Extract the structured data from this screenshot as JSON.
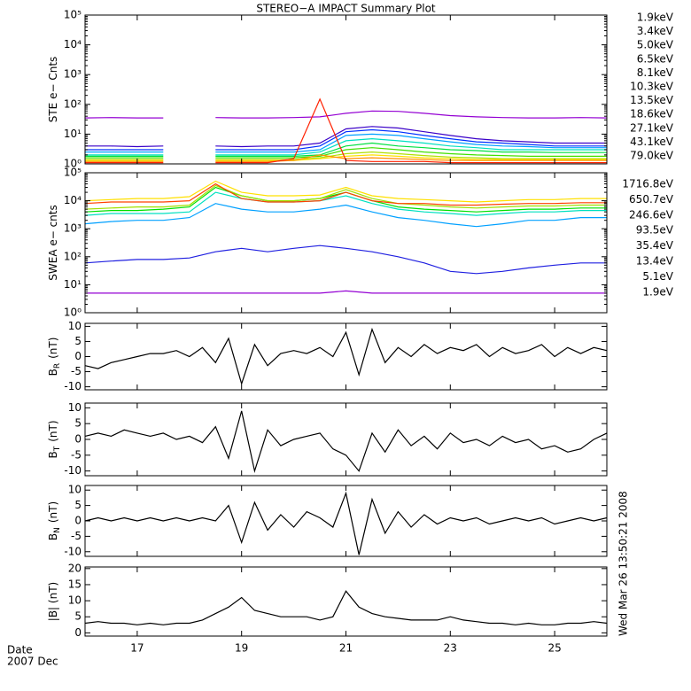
{
  "chart_data": [
    {
      "type": "line",
      "title": "STEREO−A IMPACT Summary Plot",
      "ylabel": "STE e− Cnts",
      "log": true,
      "xlim": [
        16,
        26
      ],
      "xticks": [
        17,
        19,
        21,
        23,
        25
      ],
      "ylim": [
        1,
        100000
      ],
      "yticks": [
        {
          "value": 1,
          "label": "10⁰"
        },
        {
          "value": 10,
          "label": "10¹"
        },
        {
          "value": 100,
          "label": "10²"
        },
        {
          "value": 1000,
          "label": "10³"
        },
        {
          "value": 10000,
          "label": "10⁴"
        },
        {
          "value": 100000,
          "label": "10⁵"
        }
      ],
      "x": [
        16,
        16.5,
        17,
        17.5,
        18,
        18.5,
        19,
        19.5,
        20,
        20.5,
        21,
        21.5,
        22,
        22.5,
        23,
        23.5,
        24,
        24.5,
        25,
        25.5,
        26
      ],
      "series": [
        {
          "name": "1.9keV",
          "color": "#9400d3",
          "values": [
            35,
            36,
            35,
            35,
            null,
            36,
            35,
            35,
            36,
            38,
            50,
            60,
            58,
            50,
            42,
            38,
            36,
            35,
            35,
            36,
            35
          ]
        },
        {
          "name": "3.4keV",
          "color": "#3a00c8",
          "values": [
            4,
            4,
            3.8,
            4,
            null,
            4,
            3.8,
            4,
            4,
            5,
            15,
            18,
            16,
            12,
            9,
            7,
            6,
            5.5,
            5,
            5,
            5
          ]
        },
        {
          "name": "5.0keV",
          "color": "#0030ff",
          "values": [
            3,
            3,
            3,
            3,
            null,
            3,
            3,
            3,
            3,
            4,
            12,
            14,
            12,
            9,
            7,
            5.5,
            5,
            4.5,
            4,
            4,
            4
          ]
        },
        {
          "name": "6.5keV",
          "color": "#00a0ff",
          "values": [
            2.5,
            2.5,
            2.5,
            2.5,
            null,
            2.5,
            2.5,
            2.5,
            2.5,
            3,
            9,
            10,
            9,
            7,
            5.5,
            4.5,
            4,
            3.8,
            3.5,
            3.5,
            3.5
          ]
        },
        {
          "name": "8.1keV",
          "color": "#00e0c0",
          "values": [
            2,
            2,
            2,
            2,
            null,
            2,
            2,
            2,
            2,
            2.5,
            6,
            7,
            6,
            5,
            4,
            3.5,
            3,
            3,
            3,
            3,
            3
          ]
        },
        {
          "name": "10.3keV",
          "color": "#00e040",
          "values": [
            1.8,
            1.8,
            1.8,
            1.8,
            null,
            1.8,
            1.8,
            1.8,
            1.8,
            2,
            4,
            5,
            4,
            3.5,
            3,
            2.8,
            2.5,
            2.5,
            2.4,
            2.4,
            2.4
          ]
        },
        {
          "name": "13.5keV",
          "color": "#40e000",
          "values": [
            1.6,
            1.6,
            1.6,
            1.6,
            null,
            1.6,
            1.6,
            1.6,
            1.6,
            1.8,
            3,
            3.5,
            3,
            2.5,
            2.2,
            2,
            1.9,
            1.8,
            1.8,
            1.8,
            1.8
          ]
        },
        {
          "name": "18.6keV",
          "color": "#b0e000",
          "values": [
            1.4,
            1.4,
            1.4,
            1.4,
            null,
            1.4,
            1.4,
            1.4,
            1.4,
            1.6,
            2.2,
            2.5,
            2.2,
            1.9,
            1.7,
            1.6,
            1.5,
            1.5,
            1.5,
            1.5,
            1.5
          ]
        },
        {
          "name": "27.1keV",
          "color": "#ffe000",
          "values": [
            1.3,
            1.3,
            1.3,
            1.3,
            null,
            1.3,
            1.3,
            1.3,
            1.3,
            1.5,
            1.8,
            2,
            1.8,
            1.6,
            1.5,
            1.4,
            1.4,
            1.4,
            1.4,
            1.4,
            1.4
          ]
        },
        {
          "name": "43.1keV",
          "color": "#ff9000",
          "values": [
            1.2,
            1.2,
            1.2,
            1.2,
            null,
            1.2,
            1.2,
            1.2,
            1.3,
            2,
            1.5,
            1.6,
            1.5,
            1.4,
            1.3,
            1.3,
            1.3,
            1.3,
            1.3,
            1.3,
            1.3
          ]
        },
        {
          "name": "79.0keV",
          "color": "#ff2000",
          "values": [
            1.1,
            1.1,
            1.1,
            1.1,
            null,
            1.1,
            1.1,
            1.1,
            1.5,
            150,
            1.3,
            1.2,
            1.2,
            1.2,
            1.1,
            1.1,
            1.1,
            1.1,
            1.1,
            1.1,
            1.1
          ]
        }
      ]
    },
    {
      "type": "line",
      "ylabel": "SWEA e− cnts",
      "log": true,
      "xlim": [
        16,
        26
      ],
      "xticks": [
        17,
        19,
        21,
        23,
        25
      ],
      "ylim": [
        1,
        100000
      ],
      "yticks": [
        {
          "value": 1,
          "label": "10⁰"
        },
        {
          "value": 10,
          "label": "10¹"
        },
        {
          "value": 100,
          "label": "10²"
        },
        {
          "value": 1000,
          "label": "10³"
        },
        {
          "value": 10000,
          "label": "10⁴"
        },
        {
          "value": 100000,
          "label": "10⁵"
        }
      ],
      "x": [
        16,
        16.5,
        17,
        17.5,
        18,
        18.5,
        19,
        19.5,
        20,
        20.5,
        21,
        21.5,
        22,
        22.5,
        23,
        23.5,
        24,
        24.5,
        25,
        25.5,
        26
      ],
      "series": [
        {
          "name": "1716.8eV",
          "color": "#9400d3",
          "values": [
            5,
            5,
            5,
            5,
            5,
            5,
            5,
            5,
            5,
            5,
            6,
            5,
            5,
            5,
            5,
            5,
            5,
            5,
            5,
            5,
            5
          ]
        },
        {
          "name": "650.7eV",
          "color": "#2020e0",
          "values": [
            60,
            70,
            80,
            80,
            90,
            150,
            200,
            150,
            200,
            250,
            200,
            150,
            100,
            60,
            30,
            25,
            30,
            40,
            50,
            60,
            60
          ]
        },
        {
          "name": "246.6eV",
          "color": "#00a0ff",
          "values": [
            1500,
            1800,
            2000,
            2000,
            2500,
            8000,
            5000,
            4000,
            4000,
            5000,
            7000,
            4000,
            2500,
            2000,
            1500,
            1200,
            1500,
            2000,
            2000,
            2500,
            2500
          ]
        },
        {
          "name": "93.5eV",
          "color": "#00e0c0",
          "values": [
            3000,
            3500,
            3500,
            3500,
            4000,
            20000,
            12000,
            9000,
            9000,
            10000,
            15000,
            8000,
            5000,
            4000,
            3500,
            3000,
            3500,
            4000,
            4000,
            4500,
            4500
          ]
        },
        {
          "name": "35.4eV",
          "color": "#00e000",
          "values": [
            4000,
            4500,
            4500,
            5000,
            6000,
            30000,
            15000,
            10000,
            10000,
            12000,
            20000,
            10000,
            6000,
            5000,
            4500,
            4000,
            4500,
            5000,
            5000,
            5500,
            5500
          ]
        },
        {
          "name": "13.4eV",
          "color": "#a0e000",
          "values": [
            5000,
            5500,
            6000,
            6000,
            7000,
            35000,
            15000,
            10000,
            10000,
            12000,
            25000,
            12000,
            8000,
            7000,
            6000,
            5500,
            6000,
            6500,
            6500,
            7000,
            7000
          ]
        },
        {
          "name": "5.1eV",
          "color": "#ffe000",
          "values": [
            10000,
            11000,
            12000,
            12000,
            14000,
            50000,
            20000,
            15000,
            15000,
            16000,
            30000,
            15000,
            12000,
            11000,
            10000,
            9000,
            10000,
            11000,
            11000,
            12000,
            12000
          ]
        },
        {
          "name": "1.9eV",
          "color": "#ff4000",
          "values": [
            8000,
            9000,
            9000,
            9000,
            10000,
            40000,
            12000,
            9000,
            9000,
            10000,
            20000,
            10000,
            8000,
            8000,
            7000,
            7000,
            7500,
            8000,
            8000,
            8500,
            8500
          ]
        }
      ]
    },
    {
      "type": "line",
      "ylabel": "B",
      "ylabel_sub": "R",
      "ylabel_unit": "(nT)",
      "xlim": [
        16,
        26
      ],
      "xticks": [
        17,
        19,
        21,
        23,
        25
      ],
      "ylim": [
        -11,
        11
      ],
      "yticks": [
        -10,
        -5,
        0,
        5,
        10
      ],
      "x": [
        16,
        16.25,
        16.5,
        16.75,
        17,
        17.25,
        17.5,
        17.75,
        18,
        18.25,
        18.5,
        18.75,
        19,
        19.25,
        19.5,
        19.75,
        20,
        20.25,
        20.5,
        20.75,
        21,
        21.25,
        21.5,
        21.75,
        22,
        22.25,
        22.5,
        22.75,
        23,
        23.25,
        23.5,
        23.75,
        24,
        24.25,
        24.5,
        24.75,
        25,
        25.25,
        25.5,
        25.75,
        26
      ],
      "series": [
        {
          "color": "#000000",
          "values": [
            -3,
            -4,
            -2,
            -1,
            0,
            1,
            1,
            2,
            0,
            3,
            -2,
            6,
            -9,
            4,
            -3,
            1,
            2,
            1,
            3,
            0,
            8,
            -6,
            9,
            -2,
            3,
            0,
            4,
            1,
            3,
            2,
            4,
            0,
            3,
            1,
            2,
            4,
            0,
            3,
            1,
            3,
            2
          ]
        }
      ]
    },
    {
      "type": "line",
      "ylabel": "B",
      "ylabel_sub": "T",
      "ylabel_unit": "(nT)",
      "xlim": [
        16,
        26
      ],
      "xticks": [
        17,
        19,
        21,
        23,
        25
      ],
      "ylim": [
        -11.5,
        11.5
      ],
      "yticks": [
        -10,
        -5,
        0,
        5,
        10
      ],
      "x": [
        16,
        16.25,
        16.5,
        16.75,
        17,
        17.25,
        17.5,
        17.75,
        18,
        18.25,
        18.5,
        18.75,
        19,
        19.25,
        19.5,
        19.75,
        20,
        20.25,
        20.5,
        20.75,
        21,
        21.25,
        21.5,
        21.75,
        22,
        22.25,
        22.5,
        22.75,
        23,
        23.25,
        23.5,
        23.75,
        24,
        24.25,
        24.5,
        24.75,
        25,
        25.25,
        25.5,
        25.75,
        26
      ],
      "series": [
        {
          "color": "#000000",
          "values": [
            1,
            2,
            1,
            3,
            2,
            1,
            2,
            0,
            1,
            -1,
            4,
            -6,
            9,
            -10,
            3,
            -2,
            0,
            1,
            2,
            -3,
            -5,
            -10,
            2,
            -4,
            3,
            -2,
            1,
            -3,
            2,
            -1,
            0,
            -2,
            1,
            -1,
            0,
            -3,
            -2,
            -4,
            -3,
            0,
            2
          ]
        }
      ]
    },
    {
      "type": "line",
      "ylabel": "B",
      "ylabel_sub": "N",
      "ylabel_unit": "(nT)",
      "xlim": [
        16,
        26
      ],
      "xticks": [
        17,
        19,
        21,
        23,
        25
      ],
      "ylim": [
        -11.5,
        11.5
      ],
      "yticks": [
        -10,
        -5,
        0,
        5,
        10
      ],
      "x": [
        16,
        16.25,
        16.5,
        16.75,
        17,
        17.25,
        17.5,
        17.75,
        18,
        18.25,
        18.5,
        18.75,
        19,
        19.25,
        19.5,
        19.75,
        20,
        20.25,
        20.5,
        20.75,
        21,
        21.25,
        21.5,
        21.75,
        22,
        22.25,
        22.5,
        22.75,
        23,
        23.25,
        23.5,
        23.75,
        24,
        24.25,
        24.5,
        24.75,
        25,
        25.25,
        25.5,
        25.75,
        26
      ],
      "series": [
        {
          "color": "#000000",
          "values": [
            0,
            1,
            0,
            1,
            0,
            1,
            0,
            1,
            0,
            1,
            0,
            5,
            -7,
            6,
            -3,
            2,
            -2,
            3,
            1,
            -2,
            9,
            -11,
            7,
            -4,
            3,
            -2,
            2,
            -1,
            1,
            0,
            1,
            -1,
            0,
            1,
            0,
            1,
            -1,
            0,
            1,
            0,
            1
          ]
        }
      ]
    },
    {
      "type": "line",
      "ylabel": "|B| (nT)",
      "xlabel": "Date",
      "xsublabel": "2007 Dec",
      "annotation": "Wed Mar 26 13:50:21 2008",
      "xlim": [
        16,
        26
      ],
      "xticks": [
        17,
        19,
        21,
        23,
        25
      ],
      "ylim": [
        -1,
        20.5
      ],
      "yticks": [
        0,
        5,
        10,
        15,
        20
      ],
      "x": [
        16,
        16.25,
        16.5,
        16.75,
        17,
        17.25,
        17.5,
        17.75,
        18,
        18.25,
        18.5,
        18.75,
        19,
        19.25,
        19.5,
        19.75,
        20,
        20.25,
        20.5,
        20.75,
        21,
        21.25,
        21.5,
        21.75,
        22,
        22.25,
        22.5,
        22.75,
        23,
        23.25,
        23.5,
        23.75,
        24,
        24.25,
        24.5,
        24.75,
        25,
        25.25,
        25.5,
        25.75,
        26
      ],
      "series": [
        {
          "color": "#000000",
          "values": [
            3,
            3.5,
            3,
            3,
            2.5,
            3,
            2.5,
            3,
            3,
            4,
            6,
            8,
            11,
            7,
            6,
            5,
            5,
            5,
            4,
            5,
            13,
            8,
            6,
            5,
            4.5,
            4,
            4,
            4,
            5,
            4,
            3.5,
            3,
            3,
            2.5,
            3,
            2.5,
            2.5,
            3,
            3,
            3.5,
            3
          ]
        }
      ]
    }
  ]
}
